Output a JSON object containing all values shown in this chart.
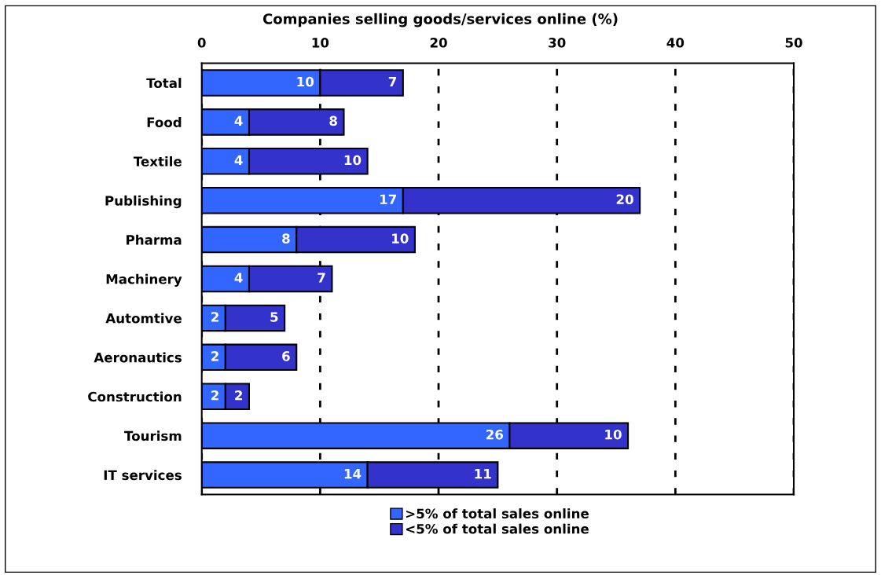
{
  "chart_data": {
    "type": "bar",
    "orientation": "horizontal",
    "stacked": true,
    "title": "Companies selling goods/services online (%)",
    "categories": [
      "Total",
      "Food",
      "Textile",
      "Publishing",
      "Pharma",
      "Machinery",
      "Automtive",
      "Aeronautics",
      "Construction",
      "Tourism",
      "IT services"
    ],
    "series": [
      {
        "name": ">5% of total sales online",
        "color": "#3366ff",
        "values": [
          10,
          4,
          4,
          17,
          8,
          4,
          2,
          2,
          2,
          26,
          14
        ]
      },
      {
        "name": "<5% of total sales online",
        "color": "#3333cc",
        "values": [
          7,
          8,
          10,
          20,
          10,
          7,
          5,
          6,
          2,
          10,
          11
        ]
      }
    ],
    "xlim": [
      0,
      50
    ],
    "xticks": [
      0,
      10,
      20,
      30,
      40,
      50
    ],
    "grid": "x",
    "legend": "bottom",
    "data_labels": true
  }
}
